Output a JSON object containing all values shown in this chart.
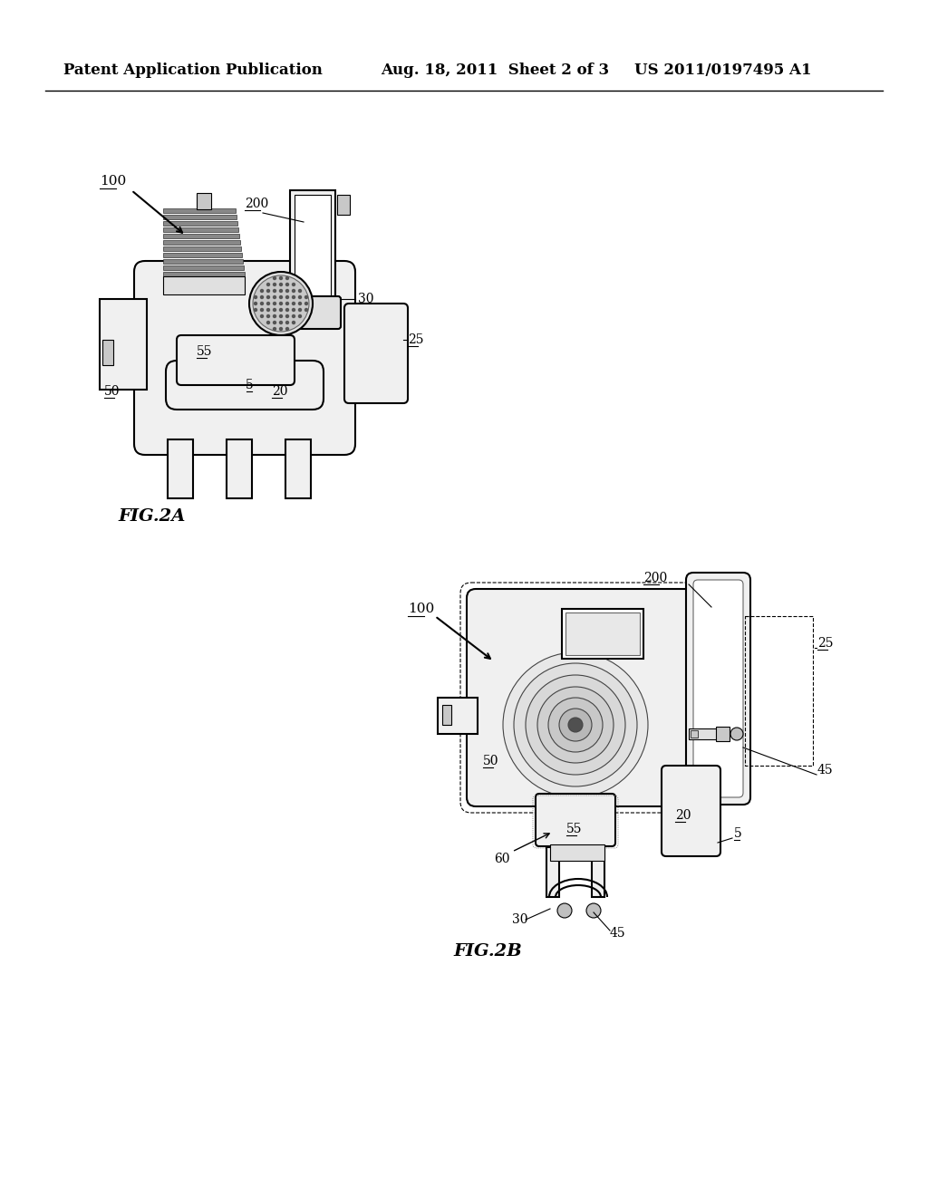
{
  "background_color": "#ffffff",
  "header_left": "Patent Application Publication",
  "header_center": "Aug. 18, 2011  Sheet 2 of 3",
  "header_right": "US 2011/0197495 A1",
  "fig2a_label": "FIG.2A",
  "fig2b_label": "FIG.2B",
  "line_color": "#000000",
  "fill_light": "#f0f0f0",
  "fill_med": "#e0e0e0",
  "fill_dark": "#c8c8c8",
  "fill_hatch": "#d0d0d0"
}
